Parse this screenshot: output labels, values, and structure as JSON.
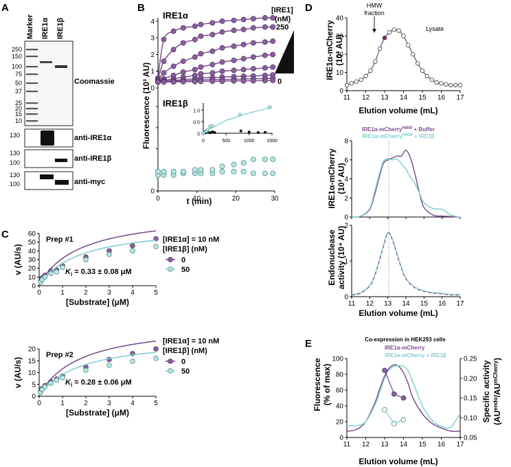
{
  "colors": {
    "alpha": "#7b4f8e",
    "alpha_fill": "#8a5fa0",
    "beta": "#7fd0d0",
    "beta_fill": "#b7e6e3",
    "grey": "#7f7f7f"
  },
  "panel_A": {
    "label": "A",
    "lanes": [
      "Marker",
      "IRE1α",
      "IRE1β"
    ],
    "marker_kda": [
      "250",
      "150",
      "100",
      "75",
      "50",
      "37",
      "25",
      "20",
      "15",
      "10"
    ],
    "coomassie_label": "Coomassie",
    "blots": [
      {
        "label": "anti-IRE1α",
        "markers": [
          "130"
        ]
      },
      {
        "label": "anti-IRE1β",
        "markers": [
          "130",
          "100"
        ]
      },
      {
        "label": "anti-myc",
        "markers": [
          "130",
          "100"
        ]
      }
    ]
  },
  "panel_B": {
    "label": "B",
    "alpha_title": "IRE1α",
    "beta_title": "IRE1β",
    "conc_header": "[IRE1]",
    "conc_unit": "(nM)",
    "conc_high": "250",
    "conc_low": "0",
    "ylabel": "Fluorescence (10³ AU)",
    "xlabel": "t (min)"
  },
  "panel_C": {
    "label": "C"
  },
  "panel_D": {
    "label": "D",
    "hmw_label": "HMW",
    "fraction_label": "fraction",
    "lysate_label": "Lysate",
    "top_ylabel1": "IRE1α-mCherry",
    "top_ylabel2": "(10³ AU)",
    "mid_ylabel1": "IRE1α-mCherry",
    "mid_ylabel2": "(10³ AU)",
    "bot_ylabel1": "Endonuclease",
    "bot_ylabel2": "activity (10⁴ AU)",
    "xlabel": "Elution volume (mL)",
    "legend1_main": "IRE1α-mCherry",
    "legend1_sup": "HMW",
    "legend1_tail": " + Buffer",
    "legend2_main": "IRE1α-mCherry",
    "legend2_sup": "HMW",
    "legend2_tail": " + IRE1β"
  },
  "panel_E": {
    "label": "E",
    "title": "Co-expression in HEK293 cells",
    "legend1": "IRE1α-mCherry",
    "legend2": "IRE1α-mCherry + IRE1β",
    "ylabel_left1": "Fluorescence",
    "ylabel_left2": "(% of max)",
    "ylabel_right1": "Specific activity",
    "ylabel_right2": "(AU",
    "ylabel_right_sup1": "endo",
    "ylabel_right_mid": "/AU",
    "ylabel_right_sup2": "mCherry",
    "ylabel_right_end": ")",
    "xlabel": "Elution volume (mL)"
  },
  "chart_data": [
    {
      "id": "B-alpha",
      "type": "scatter",
      "xlabel": "t (min)",
      "ylabel": "Fluorescence (10³ AU)",
      "xlim": [
        0,
        30
      ],
      "ylim": [
        0,
        4.2
      ],
      "x": [
        0,
        1.5,
        4,
        6.5,
        9.5,
        11,
        14,
        16.5,
        19.5,
        22,
        24.5,
        27.5,
        29.5
      ],
      "series": [
        {
          "conc": "250",
          "values": [
            0.6,
            2.9,
            3.4,
            3.6,
            3.7,
            3.8,
            3.9,
            4.0,
            4.05,
            4.1,
            4.15,
            4.2,
            4.2
          ]
        },
        {
          "values": [
            0.5,
            1.6,
            2.3,
            2.7,
            2.9,
            3.1,
            3.2,
            3.35,
            3.45,
            3.5,
            3.6,
            3.65,
            3.65
          ]
        },
        {
          "values": [
            0.45,
            0.9,
            1.3,
            1.6,
            1.85,
            2.05,
            2.2,
            2.4,
            2.5,
            2.6,
            2.7,
            2.75,
            2.8
          ]
        },
        {
          "values": [
            0.4,
            0.55,
            0.75,
            0.95,
            1.1,
            1.25,
            1.4,
            1.55,
            1.65,
            1.75,
            1.85,
            1.95,
            2.0
          ]
        },
        {
          "values": [
            0.35,
            0.45,
            0.55,
            0.65,
            0.75,
            0.85,
            0.9,
            1.0,
            1.05,
            1.1,
            1.15,
            1.2,
            1.25
          ]
        },
        {
          "values": [
            0.35,
            0.4,
            0.45,
            0.5,
            0.55,
            0.6,
            0.62,
            0.65,
            0.68,
            0.7,
            0.72,
            0.75,
            0.78
          ]
        },
        {
          "values": [
            0.35,
            0.37,
            0.4,
            0.42,
            0.45,
            0.47,
            0.5,
            0.5,
            0.52,
            0.53,
            0.55,
            0.56,
            0.58
          ]
        },
        {
          "conc": "0",
          "values": [
            0.35,
            0.35,
            0.36,
            0.37,
            0.38,
            0.39,
            0.4,
            0.4,
            0.42,
            0.42,
            0.43,
            0.44,
            0.45
          ]
        }
      ]
    },
    {
      "id": "B-beta",
      "type": "scatter",
      "xlabel": "t (min)",
      "ylabel": "Fluorescence (10³ AU)",
      "xlim": [
        0,
        30
      ],
      "ylim": [
        0,
        2.5
      ],
      "x": [
        0,
        1.5,
        4,
        6.5,
        9.5,
        11,
        14,
        16.5,
        19.5,
        22,
        24.5,
        27.5,
        29.5
      ],
      "values": [
        0.45,
        0.45,
        0.45,
        0.5,
        0.5,
        0.5,
        0.5,
        0.55,
        0.55,
        0.55,
        0.5,
        0.5,
        0.5
      ],
      "values_high": [
        0.55,
        0.55,
        0.55,
        0.55,
        0.6,
        0.6,
        0.6,
        0.7,
        0.75,
        0.8,
        0.9,
        0.9,
        0.9
      ],
      "yticks": [
        "0",
        "",
        "",
        "",
        ""
      ]
    },
    {
      "id": "B-inset",
      "type": "scatter",
      "xlim": [
        0,
        1500
      ],
      "ylim": [
        0,
        1.3
      ],
      "xticks": [
        "0",
        "500",
        "1000",
        "1500"
      ],
      "yticks": [
        "0",
        "0.5",
        "1.0"
      ],
      "fit": {
        "name": "IRE1β",
        "x": [
          0,
          50,
          100,
          150,
          200,
          300,
          400,
          500,
          650,
          800,
          1000,
          1200,
          1500
        ],
        "y": [
          0,
          0.07,
          0.14,
          0.2,
          0.25,
          0.35,
          0.45,
          0.55,
          0.65,
          0.75,
          0.87,
          0.97,
          1.1
        ]
      },
      "points_beta": {
        "x": [
          0,
          50,
          75,
          100,
          150,
          200,
          800,
          1450
        ],
        "y": [
          0,
          0.08,
          0.1,
          0.15,
          0.3,
          0.3,
          0.8,
          1.12
        ]
      },
      "points_black": {
        "x": [
          0,
          25,
          50,
          100,
          150,
          200,
          250,
          820,
          1000,
          1200,
          1350
        ],
        "y": [
          0,
          0.05,
          0.02,
          0.04,
          0.02,
          0.06,
          0.03,
          0.1,
          0.05,
          0.03,
          0.04
        ]
      }
    },
    {
      "id": "C-prep1",
      "type": "scatter",
      "title": "Prep #1",
      "xlabel": "[Substrate] (μM)",
      "ylabel": "v (AU/s)",
      "xlim": [
        0,
        5
      ],
      "ylim": [
        0,
        60
      ],
      "xticks": [
        "0",
        "1",
        "2",
        "3",
        "4",
        "5"
      ],
      "yticks": [
        "0",
        "10",
        "20",
        "30",
        "40",
        "50",
        "60"
      ],
      "legend_line1": "[IRE1α] = 10 nM",
      "legend_line2": "[IRE1β] (nM)",
      "series": [
        {
          "name": "0",
          "x": [
            0.0625,
            0.125,
            0.25,
            0.5,
            0.75,
            1,
            2,
            3,
            4,
            5
          ],
          "values": [
            5,
            9,
            12,
            17,
            18,
            23,
            33,
            40,
            46,
            54
          ]
        },
        {
          "name": "50",
          "x": [
            0.0625,
            0.125,
            0.25,
            0.5,
            0.75,
            1,
            2,
            3,
            4,
            5
          ],
          "values": [
            4,
            7,
            10,
            14,
            16,
            21,
            30,
            36,
            40,
            45
          ]
        }
      ],
      "annotation": "K",
      "annotation_sub": "i",
      "annotation_val": " = 0.33 ± 0.08 μM"
    },
    {
      "id": "C-prep2",
      "type": "scatter",
      "title": "Prep #2",
      "xlabel": "[Substrate] (μM)",
      "ylabel": "v (AU/s)",
      "xlim": [
        0,
        5
      ],
      "ylim": [
        0,
        20
      ],
      "xticks": [
        "0",
        "1",
        "2",
        "3",
        "4",
        "5"
      ],
      "yticks": [
        "0",
        "5",
        "10",
        "15",
        "20"
      ],
      "legend_line1": "[IRE1α] = 10 nM",
      "legend_line2": "[IRE1β] (nM)",
      "series": [
        {
          "name": "0",
          "x": [
            0.0625,
            0.125,
            0.25,
            0.5,
            0.75,
            1,
            2,
            3,
            4,
            5
          ],
          "values": [
            2,
            3.2,
            4.5,
            6.2,
            7.3,
            8.5,
            12.3,
            15.5,
            18,
            20
          ]
        },
        {
          "name": "50",
          "x": [
            0.0625,
            0.125,
            0.25,
            0.5,
            0.75,
            1,
            2,
            3,
            4,
            5
          ],
          "values": [
            1.6,
            2.8,
            4,
            5.5,
            6.8,
            7.8,
            11,
            13,
            14.8,
            16
          ]
        }
      ],
      "annotation": "K",
      "annotation_sub": "i",
      "annotation_val": " = 0.28 ± 0.06 μM"
    },
    {
      "id": "D-lysate",
      "type": "line",
      "xlabel": "Elution volume (mL)",
      "xlim": [
        11,
        17
      ],
      "ylim": [
        0,
        40
      ],
      "xticks": [
        "11",
        "12",
        "13",
        "14",
        "15",
        "16",
        "17"
      ],
      "yticks": [
        "0",
        "10",
        "20",
        "30",
        "40"
      ],
      "x": [
        11,
        11.25,
        11.5,
        11.75,
        12,
        12.25,
        12.5,
        12.75,
        13,
        13.25,
        13.5,
        13.75,
        14,
        14.25,
        14.5,
        14.75,
        15,
        15.25,
        15.5,
        15.75,
        16,
        16.25,
        16.5,
        16.75,
        17
      ],
      "values": [
        3,
        4,
        5,
        6,
        8,
        11,
        16,
        23,
        29,
        32,
        33.5,
        33,
        30,
        25,
        20,
        15,
        11,
        8,
        6,
        4.5,
        4,
        3.5,
        3,
        3,
        3
      ],
      "highlight_x": 13
    },
    {
      "id": "D-mcherry",
      "type": "line",
      "xlim": [
        11,
        17
      ],
      "ylim": [
        0,
        8
      ],
      "xticks": [
        "11",
        "12",
        "13",
        "14",
        "15",
        "16",
        "17"
      ],
      "yticks": [
        "0",
        "2",
        "4",
        "6",
        "8"
      ],
      "x": [
        11,
        11.5,
        12,
        12.25,
        12.5,
        12.75,
        13,
        13.25,
        13.5,
        13.75,
        14,
        14.25,
        14.5,
        14.75,
        15,
        15.5,
        16,
        16.5,
        17
      ],
      "series": [
        {
          "name": "IRE1α-mCherryHMW + Buffer",
          "values": [
            0,
            0.1,
            0.8,
            2.2,
            4,
            5.6,
            6,
            6.2,
            6.4,
            6.4,
            7.0,
            6.2,
            4.5,
            2.5,
            1.0,
            0.2,
            0.1,
            0.05,
            0
          ]
        },
        {
          "name": "IRE1α-mCherryHMW + IRE1β",
          "values": [
            0,
            0.1,
            0.9,
            2.5,
            4.3,
            5.8,
            6.1,
            6.0,
            6.1,
            5.6,
            5.0,
            4.2,
            3.5,
            2.5,
            1.5,
            0.9,
            0.8,
            0.2,
            0
          ]
        }
      ],
      "vline_x": 13.05
    },
    {
      "id": "D-endo",
      "type": "line",
      "xlabel": "Elution volume (mL)",
      "xlim": [
        11,
        17
      ],
      "ylim": [
        0,
        2
      ],
      "xticks": [
        "11",
        "12",
        "13",
        "14",
        "15",
        "16",
        "17"
      ],
      "yticks": [
        "0",
        "1",
        "2"
      ],
      "x": [
        11,
        11.5,
        12,
        12.25,
        12.5,
        12.75,
        13,
        13.25,
        13.5,
        13.75,
        14,
        14.5,
        15,
        15.5,
        16,
        16.5,
        17
      ],
      "series": [
        {
          "name": "IRE1α-mCherryHMW + Buffer",
          "values": [
            0.05,
            0.1,
            0.3,
            0.55,
            0.95,
            1.4,
            1.78,
            1.6,
            1.2,
            0.8,
            0.5,
            0.25,
            0.15,
            0.1,
            0.08,
            0.05,
            0.05
          ]
        },
        {
          "name": "IRE1α-mCherryHMW + IRE1β",
          "values": [
            0.07,
            0.12,
            0.32,
            0.58,
            0.97,
            1.42,
            1.8,
            1.62,
            1.23,
            0.83,
            0.52,
            0.27,
            0.17,
            0.12,
            0.1,
            0.07,
            0.06
          ]
        }
      ]
    },
    {
      "id": "E",
      "type": "line",
      "xlabel": "Elution volume (mL)",
      "xlim": [
        11,
        17
      ],
      "ylim": [
        0,
        100
      ],
      "y2lim": [
        0.05,
        0.25
      ],
      "xticks": [
        "11",
        "12",
        "13",
        "14",
        "15",
        "16",
        "17"
      ],
      "yticks": [
        "0",
        "20",
        "40",
        "60",
        "80",
        "100"
      ],
      "y2ticks": [
        "0.05",
        "0.10",
        "0.15",
        "0.20",
        "0.25"
      ],
      "x": [
        11,
        11.5,
        12,
        12.5,
        12.75,
        13,
        13.25,
        13.5,
        13.75,
        14,
        14.25,
        14.5,
        15,
        15.5,
        16,
        16.5,
        17
      ],
      "series": [
        {
          "name": "IRE1α-mCherry",
          "values": [
            8,
            10,
            20,
            45,
            62,
            78,
            88,
            92,
            90,
            82,
            68,
            50,
            30,
            18,
            12,
            8,
            8
          ]
        },
        {
          "name": "IRE1α-mCherry + IRE1β",
          "values": [
            15,
            15,
            20,
            42,
            58,
            75,
            86,
            90,
            91,
            90,
            84,
            70,
            40,
            22,
            14,
            13,
            30
          ]
        }
      ],
      "activity": [
        {
          "name": "IRE1α-mCherry",
          "x": [
            13,
            13.5,
            14
          ],
          "values": [
            0.22,
            0.16,
            0.15
          ]
        },
        {
          "name": "IRE1α-mCherry + IRE1β",
          "x": [
            13,
            13.5,
            14
          ],
          "values": [
            0.12,
            0.085,
            0.095
          ]
        }
      ]
    }
  ]
}
